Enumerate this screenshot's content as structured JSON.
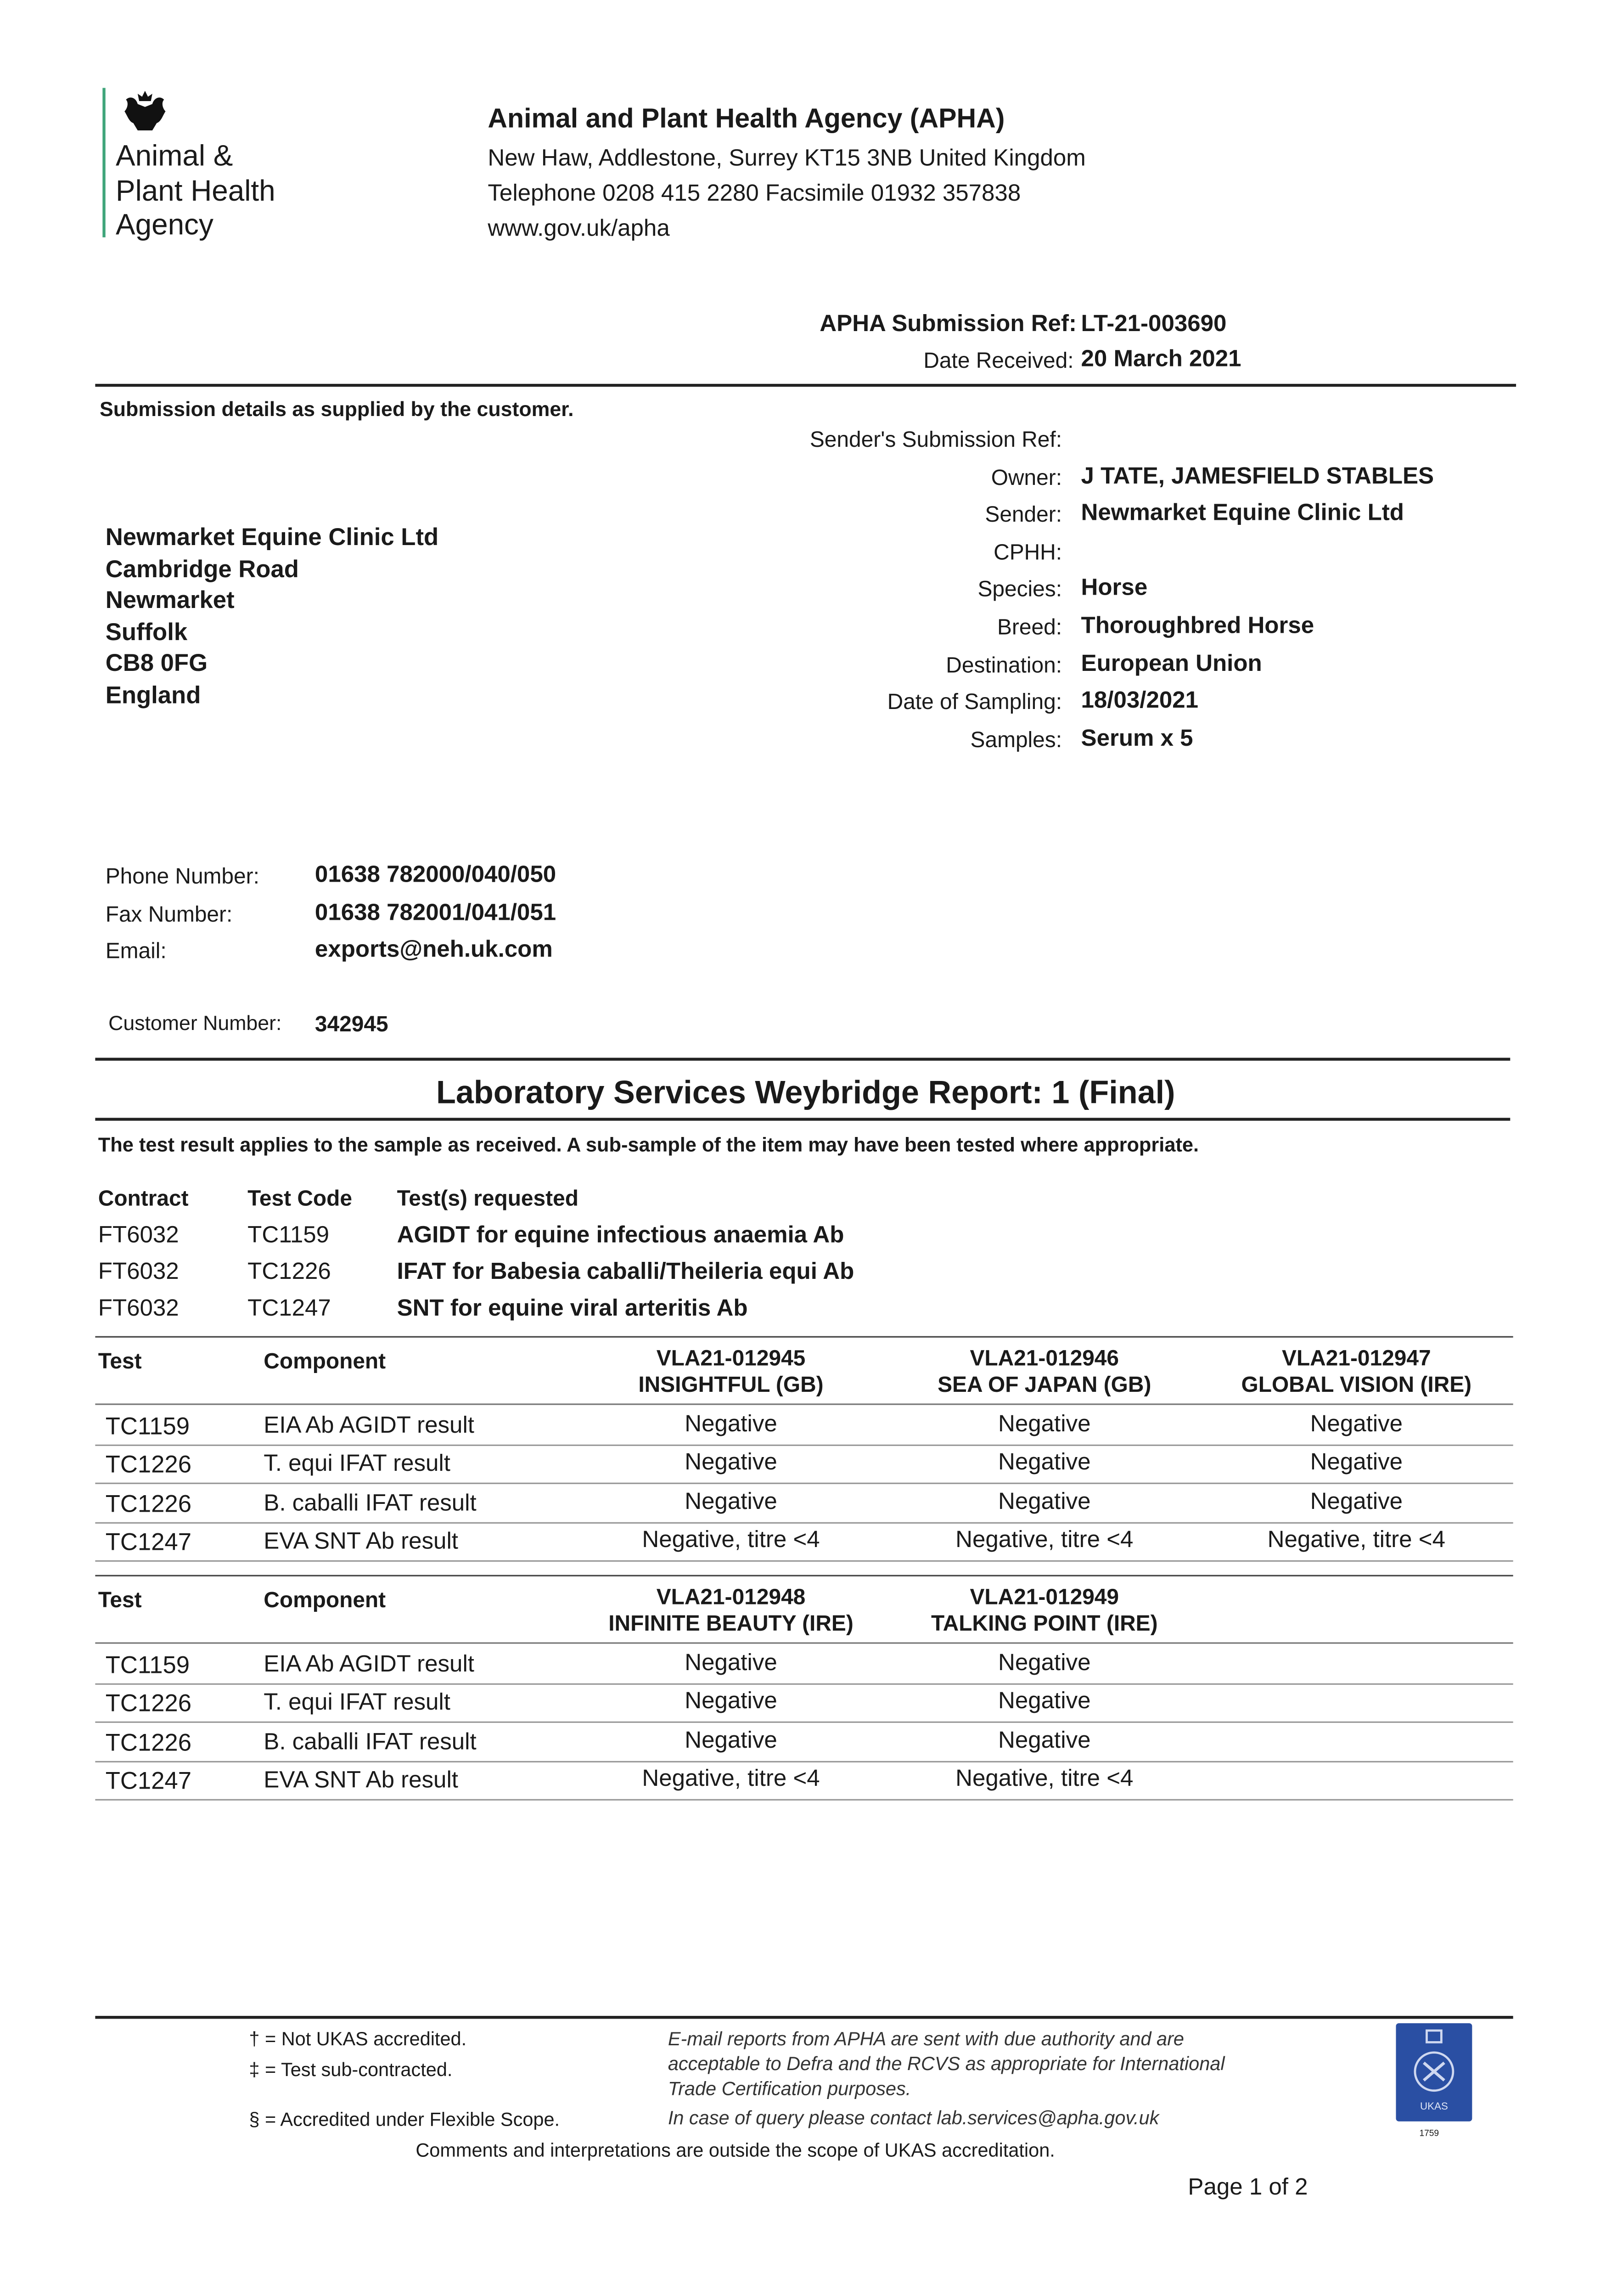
{
  "logo": {
    "lines": [
      "Animal &",
      "Plant Health",
      "Agency"
    ],
    "accent": "#3fa57a"
  },
  "agency": {
    "name": "Animal and Plant Health Agency (APHA)",
    "address": "New Haw, Addlestone, Surrey KT15 3NB United Kingdom",
    "phone": "Telephone 0208 415 2280 Facsimile 01932 357838",
    "web": "www.gov.uk/apha"
  },
  "submission": {
    "ref_label": "APHA Submission Ref:",
    "ref": "LT-21-003690",
    "date_label": "Date Received:",
    "date": "20 March 2021"
  },
  "details_heading": "Submission details as supplied by the customer.",
  "fields": [
    {
      "label": "Sender's Submission Ref:",
      "value": ""
    },
    {
      "label": "Owner:",
      "value": "J TATE, JAMESFIELD STABLES"
    },
    {
      "label": "Sender:",
      "value": "Newmarket Equine Clinic Ltd"
    },
    {
      "label": "CPHH:",
      "value": ""
    },
    {
      "label": "Species:",
      "value": "Horse"
    },
    {
      "label": "Breed:",
      "value": "Thoroughbred Horse"
    },
    {
      "label": "Destination:",
      "value": "European Union"
    },
    {
      "label": "Date of Sampling:",
      "value": "18/03/2021"
    },
    {
      "label": "Samples:",
      "value": "Serum x 5"
    }
  ],
  "address": [
    "Newmarket Equine Clinic Ltd",
    "Cambridge Road",
    "Newmarket",
    "Suffolk",
    "CB8 0FG",
    "England"
  ],
  "contact": [
    {
      "label": "Phone Number:",
      "value": "01638 782000/040/050"
    },
    {
      "label": "Fax Number:",
      "value": "01638 782001/041/051"
    },
    {
      "label": "Email:",
      "value": "exports@neh.uk.com"
    }
  ],
  "customer": {
    "label": "Customer Number:",
    "value": "342945"
  },
  "report_title": "Laboratory Services Weybridge Report: 1 (Final)",
  "report_note": "The test result applies to the sample as received. A sub-sample of the item may have been tested where appropriate.",
  "contracts": {
    "headers": [
      "Contract",
      "Test Code",
      "Test(s) requested"
    ],
    "rows": [
      [
        "FT6032",
        "TC1159",
        "AGIDT for equine infectious anaemia Ab"
      ],
      [
        "FT6032",
        "TC1226",
        "IFAT for Babesia caballi/Theileria equi Ab"
      ],
      [
        "FT6032",
        "TC1247",
        "SNT for equine viral arteritis Ab"
      ]
    ]
  },
  "results": [
    {
      "headers": [
        "Test",
        "Component"
      ],
      "samples": [
        {
          "id": "VLA21-012945",
          "name": "INSIGHTFUL (GB)"
        },
        {
          "id": "VLA21-012946",
          "name": "SEA OF JAPAN (GB)"
        },
        {
          "id": "VLA21-012947",
          "name": "GLOBAL VISION (IRE)"
        }
      ],
      "rows": [
        {
          "test": "TC1159",
          "component": "EIA Ab AGIDT result",
          "values": [
            "Negative",
            "Negative",
            "Negative"
          ]
        },
        {
          "test": "TC1226",
          "component": "T. equi IFAT result",
          "values": [
            "Negative",
            "Negative",
            "Negative"
          ]
        },
        {
          "test": "TC1226",
          "component": "B. caballi IFAT result",
          "values": [
            "Negative",
            "Negative",
            "Negative"
          ]
        },
        {
          "test": "TC1247",
          "component": "EVA SNT Ab result",
          "values": [
            "Negative, titre <4",
            "Negative, titre <4",
            "Negative, titre <4"
          ]
        }
      ]
    },
    {
      "headers": [
        "Test",
        "Component"
      ],
      "samples": [
        {
          "id": "VLA21-012948",
          "name": "INFINITE BEAUTY (IRE)"
        },
        {
          "id": "VLA21-012949",
          "name": "TALKING POINT (IRE)"
        }
      ],
      "rows": [
        {
          "test": "TC1159",
          "component": "EIA Ab AGIDT result",
          "values": [
            "Negative",
            "Negative"
          ]
        },
        {
          "test": "TC1226",
          "component": "T. equi IFAT result",
          "values": [
            "Negative",
            "Negative"
          ]
        },
        {
          "test": "TC1226",
          "component": "B. caballi IFAT result",
          "values": [
            "Negative",
            "Negative"
          ]
        },
        {
          "test": "TC1247",
          "component": "EVA SNT Ab result",
          "values": [
            "Negative, titre <4",
            "Negative, titre <4"
          ]
        }
      ]
    }
  ],
  "footer": {
    "notes": [
      "† = Not UKAS accredited.",
      "‡ = Test sub-contracted.",
      "§ = Accredited under Flexible Scope."
    ],
    "email_note": [
      "E-mail reports from APHA are sent with due authority and are",
      "acceptable to Defra and the RCVS as appropriate for International",
      "Trade Certification purposes."
    ],
    "query_note": "In case of query please contact lab.services@apha.gov.uk",
    "comments": "Comments and interpretations are outside the scope of UKAS accreditation.",
    "ukas": {
      "text": "UKAS",
      "number": "1759",
      "color": "#2a4fa3"
    },
    "page": "Page 1 of 2"
  }
}
